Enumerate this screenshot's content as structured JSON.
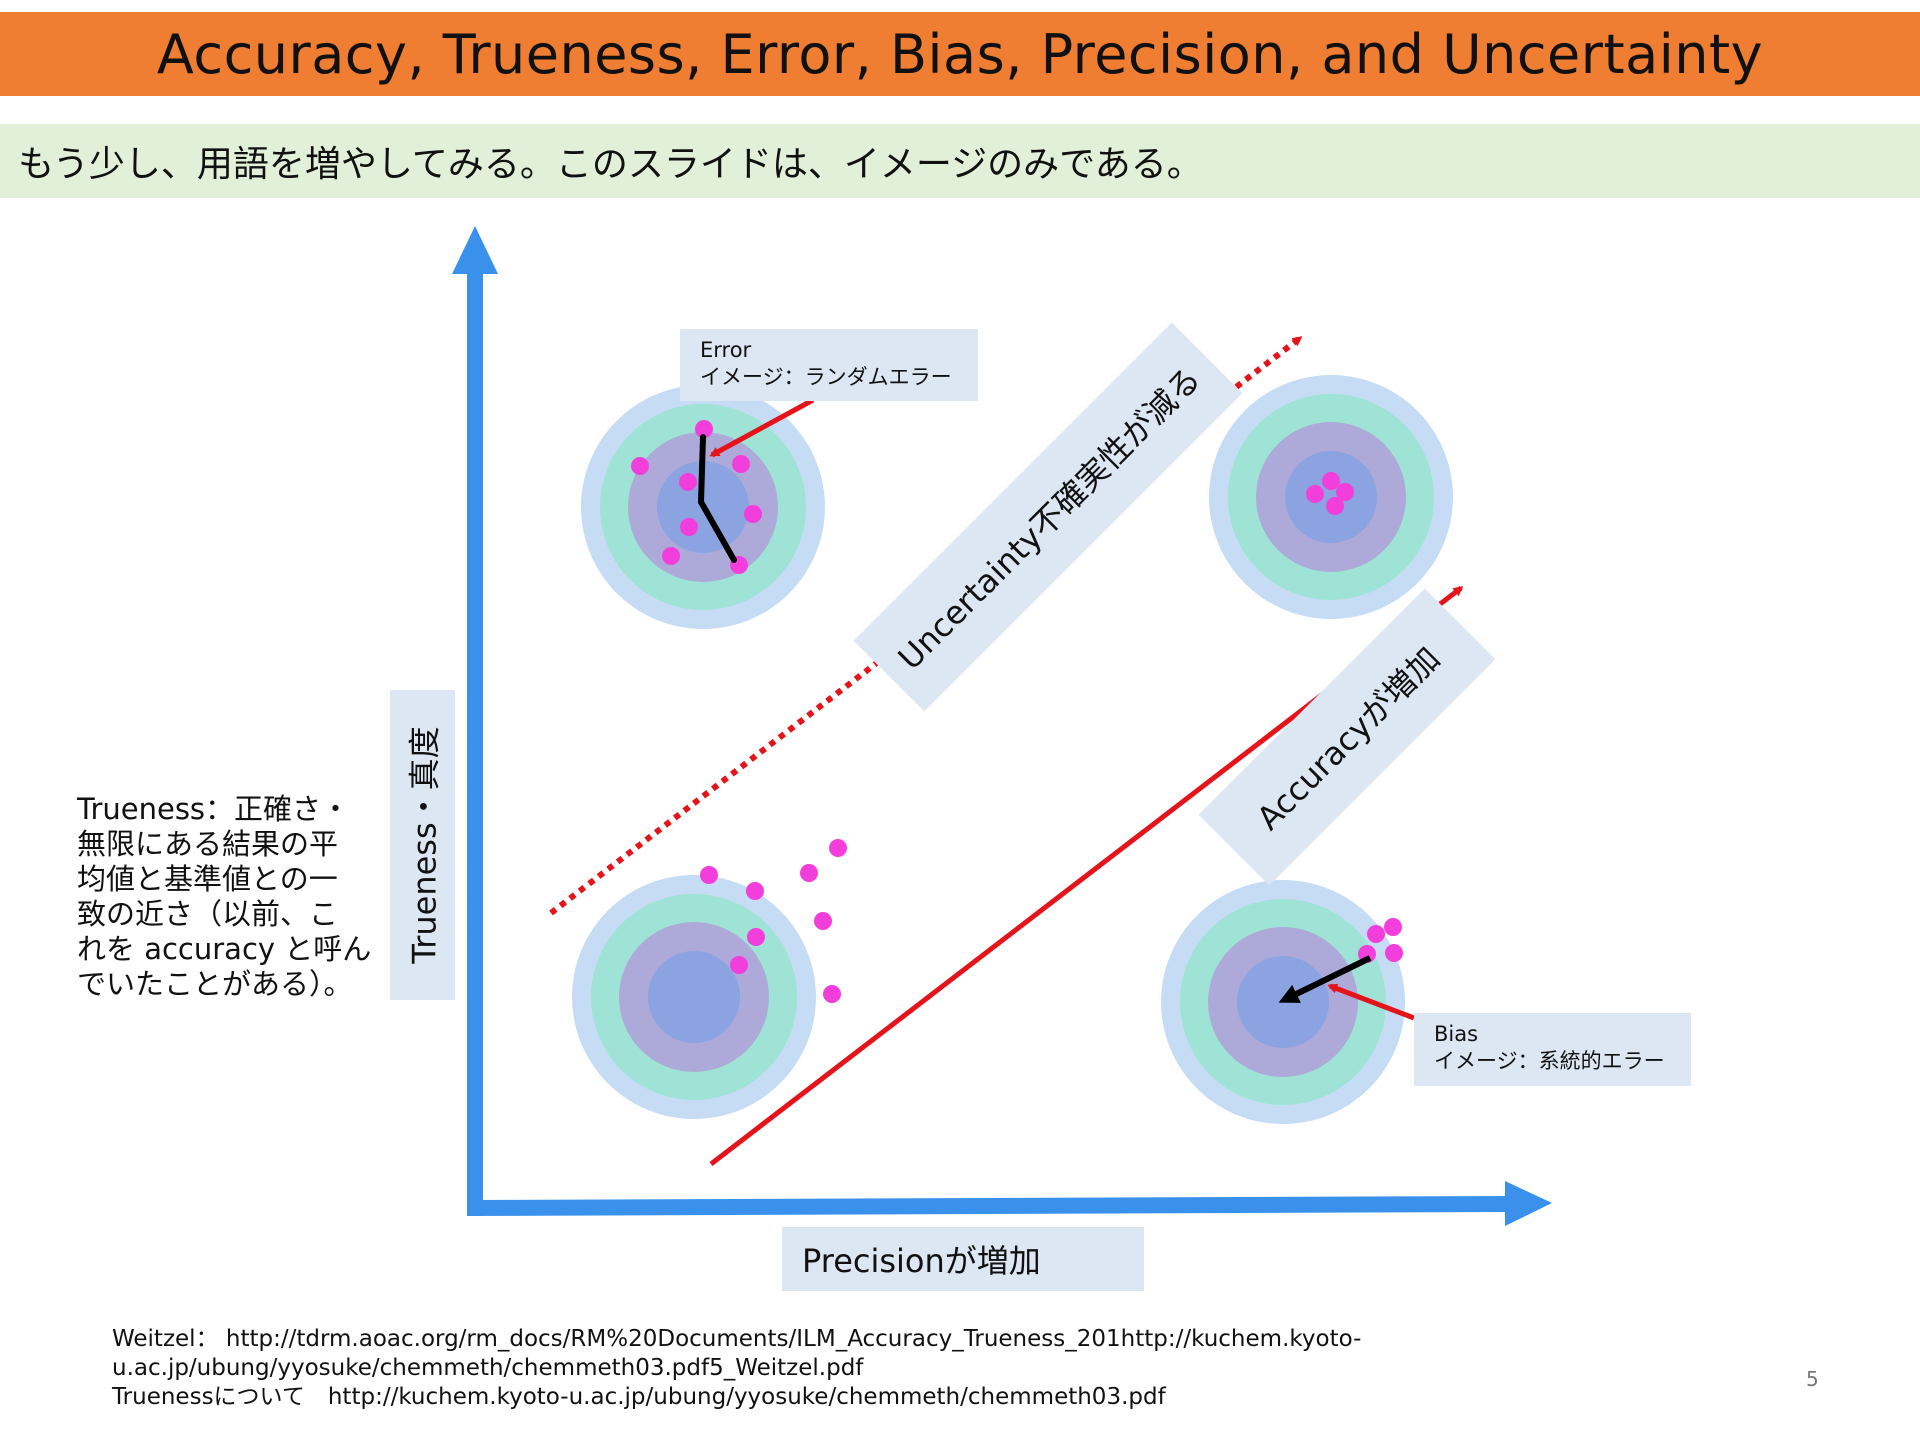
{
  "title": "Accuracy, Trueness, Error, Bias, Precision, and Uncertainty",
  "subtitle": "もう少し、用語を増やしてみる。このスライドは、イメージのみである。",
  "labels": {
    "error_box": [
      "Error",
      "イメージ：ランダムエラー"
    ],
    "bias_box": [
      "Bias",
      "イメージ：系統的エラー"
    ],
    "precision_axis": "Precisionが増加",
    "trueness_axis": "Trueness・真度",
    "uncertainty_arrow": "Uncertainty不確実性が減る",
    "accuracy_arrow": "Accuracyが増加"
  },
  "trueness_description": [
    "Trueness：正確さ・",
    "無限にある結果の平",
    "均値と基準値との一",
    "致の近さ（以前、こ",
    "れを accuracy と呼ん",
    "でいたことがある）。"
  ],
  "references": [
    "Weitzel： http://tdrm.aoac.org/rm_docs/RM%20Documents/ILM_Accuracy_Trueness_201http://kuchem.kyoto-",
    "u.ac.jp/ubung/yyosuke/chemmeth/chemmeth03.pdf5_Weitzel.pdf",
    "Truenessについて　http://kuchem.kyoto-u.ac.jp/ubung/yyosuke/chemmeth/chemmeth03.pdf"
  ],
  "page_number": "5",
  "colors": {
    "title_bar": "#ef7d32",
    "subtitle_bar": "#e2efd9",
    "axis": "#3a91ec",
    "arrow": "#e5141b",
    "dot": "#f23fdc",
    "label_box": "#dce7f3",
    "target_rings": [
      "#c6dcf5",
      "#9ee3d5",
      "#ada9d9",
      "#8ba3e1"
    ]
  }
}
